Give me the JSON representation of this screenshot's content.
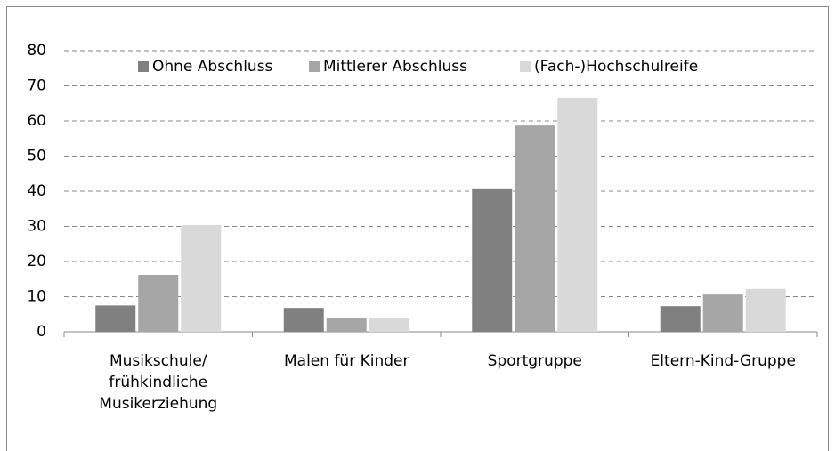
{
  "chart_data": {
    "type": "bar",
    "categories": [
      "Musikschule/\nfrühkindliche\nMusikerziehung",
      "Malen für Kinder",
      "Sportgruppe",
      "Eltern-Kind-Gruppe"
    ],
    "series": [
      {
        "name": "Ohne Abschluss",
        "color": "#808080",
        "values": [
          7.5,
          6.8,
          40.8,
          7.3
        ]
      },
      {
        "name": "Mittlerer Abschluss",
        "color": "#a6a6a6",
        "values": [
          16.2,
          3.8,
          58.7,
          10.6
        ]
      },
      {
        "name": "(Fach-)Hochschulreife",
        "color": "#d9d9d9",
        "values": [
          30.4,
          3.8,
          66.6,
          12.2
        ]
      }
    ],
    "ylim": [
      0,
      80
    ],
    "yticks": [
      0,
      10,
      20,
      30,
      40,
      50,
      60,
      70,
      80
    ],
    "grid": true,
    "legend": "top"
  }
}
